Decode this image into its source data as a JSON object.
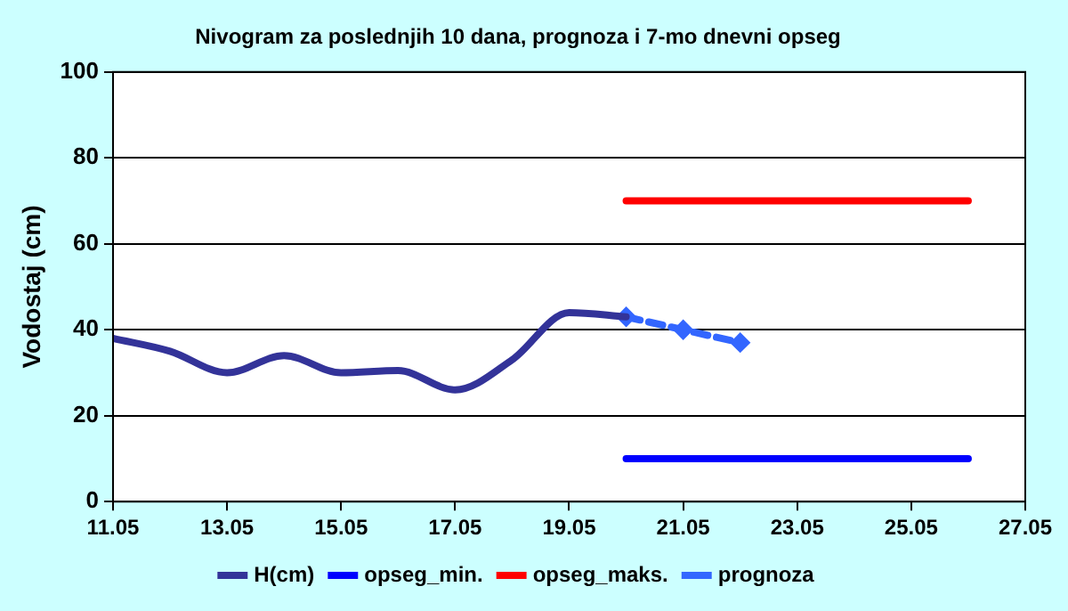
{
  "chart_data": {
    "type": "line",
    "title": "Nivogram za poslednjih 10 dana, prognoza i 7-mo dnevni opseg",
    "ylabel": "Vodostaj (cm)",
    "xlim": [
      "--05-11",
      "--05-27"
    ],
    "xticks": [
      {
        "value": "--05-11",
        "label": "11.05"
      },
      {
        "value": "--05-13",
        "label": "13.05"
      },
      {
        "value": "--05-15",
        "label": "15.05"
      },
      {
        "value": "--05-17",
        "label": "17.05"
      },
      {
        "value": "--05-19",
        "label": "19.05"
      },
      {
        "value": "--05-21",
        "label": "21.05"
      },
      {
        "value": "--05-23",
        "label": "23.05"
      },
      {
        "value": "--05-25",
        "label": "25.05"
      },
      {
        "value": "--05-27",
        "label": "27.05"
      }
    ],
    "ylim": [
      0,
      100
    ],
    "yticks": [
      0,
      20,
      40,
      60,
      80,
      100
    ],
    "grid": "y",
    "legend": "bottom",
    "marker": "none",
    "series": [
      {
        "name": "H(cm)",
        "color": "#333399",
        "x": [
          "--05-11",
          "--05-12",
          "--05-13",
          "--05-14",
          "--05-15",
          "--05-16",
          "--05-17",
          "--05-18",
          "--05-19",
          "--05-20"
        ],
        "values": [
          38,
          35,
          30,
          34,
          30,
          30.5,
          26,
          33,
          44,
          43
        ]
      },
      {
        "name": "opseg_min.",
        "color": "#0000ff",
        "x": [
          "--05-20",
          "--05-26"
        ],
        "values": [
          10,
          10
        ]
      },
      {
        "name": "opseg_maks.",
        "color": "#ff0000",
        "x": [
          "--05-20",
          "--05-26"
        ],
        "values": [
          70,
          70
        ]
      },
      {
        "name": "prognoza",
        "color": "#3366ff",
        "marker": "diamond",
        "line_style": "dashed",
        "x": [
          "--05-20",
          "--05-21",
          "--05-22"
        ],
        "values": [
          43,
          40,
          37
        ]
      }
    ]
  }
}
